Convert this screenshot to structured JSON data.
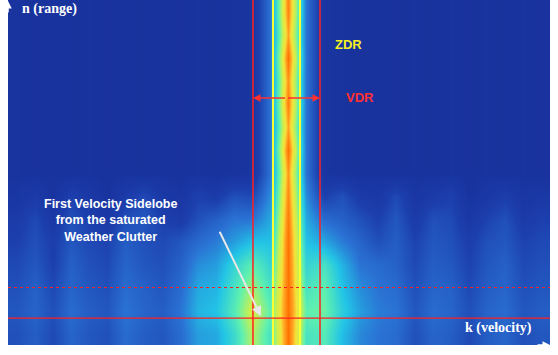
{
  "chart_data": {
    "type": "heatmap",
    "x_label": "k (velocity)",
    "y_label": "n (range)",
    "tick_labels": false,
    "xlim": [
      0,
      30
    ],
    "ylim": [
      0,
      15
    ],
    "xticks": [],
    "yticks": [],
    "zlim": [
      0,
      1
    ],
    "x": [
      0.5,
      1.5,
      2.5,
      3.5,
      4.5,
      5.5,
      6.5,
      7.5,
      8.5,
      9.5,
      10.5,
      11.5,
      12.5,
      13.5,
      14.5,
      15.5,
      16.5,
      17.5,
      18.5,
      19.5,
      20.5,
      21.5,
      22.5,
      23.5,
      24.5,
      25.5,
      26.5,
      27.5,
      28.5,
      29.5
    ],
    "y": [
      0.5,
      1.5,
      2.5,
      3.5,
      4.5,
      5.5,
      6.5,
      7.5,
      8.5,
      9.5,
      10.5,
      11.5,
      12.5,
      13.5,
      14.5
    ],
    "cells": [
      [
        0.2,
        0.24,
        0.18,
        0.26,
        0.22,
        0.2,
        0.28,
        0.24,
        0.22,
        0.28,
        0.38,
        0.4,
        0.52,
        0.7,
        0.55,
        1.0,
        0.55,
        0.58,
        0.44,
        0.34,
        0.3,
        0.28,
        0.2,
        0.26,
        0.24,
        0.18,
        0.24,
        0.26,
        0.2,
        0.22
      ],
      [
        0.22,
        0.26,
        0.2,
        0.28,
        0.24,
        0.22,
        0.3,
        0.26,
        0.24,
        0.3,
        0.42,
        0.45,
        0.58,
        0.75,
        0.6,
        1.0,
        0.6,
        0.62,
        0.48,
        0.38,
        0.32,
        0.3,
        0.22,
        0.28,
        0.26,
        0.2,
        0.26,
        0.28,
        0.22,
        0.24
      ],
      [
        0.2,
        0.25,
        0.18,
        0.26,
        0.22,
        0.2,
        0.28,
        0.25,
        0.22,
        0.28,
        0.4,
        0.42,
        0.55,
        0.68,
        0.55,
        1.0,
        0.55,
        0.6,
        0.45,
        0.35,
        0.3,
        0.28,
        0.2,
        0.26,
        0.25,
        0.18,
        0.24,
        0.26,
        0.2,
        0.22
      ],
      [
        0.18,
        0.22,
        0.15,
        0.25,
        0.2,
        0.18,
        0.26,
        0.22,
        0.2,
        0.25,
        0.35,
        0.38,
        0.5,
        0.6,
        0.5,
        1.0,
        0.5,
        0.55,
        0.42,
        0.3,
        0.28,
        0.25,
        0.18,
        0.24,
        0.22,
        0.16,
        0.22,
        0.25,
        0.18,
        0.2
      ],
      [
        0.15,
        0.2,
        0.14,
        0.22,
        0.18,
        0.16,
        0.24,
        0.2,
        0.18,
        0.22,
        0.28,
        0.32,
        0.38,
        0.45,
        0.45,
        1.0,
        0.45,
        0.4,
        0.32,
        0.26,
        0.2,
        0.24,
        0.16,
        0.22,
        0.2,
        0.14,
        0.2,
        0.22,
        0.16,
        0.18
      ],
      [
        0.12,
        0.18,
        0.1,
        0.2,
        0.15,
        0.1,
        0.2,
        0.22,
        0.15,
        0.12,
        0.2,
        0.25,
        0.3,
        0.3,
        0.4,
        0.98,
        0.4,
        0.28,
        0.25,
        0.2,
        0.15,
        0.22,
        0.12,
        0.2,
        0.18,
        0.1,
        0.16,
        0.2,
        0.12,
        0.15
      ],
      [
        0.08,
        0.12,
        0.06,
        0.15,
        0.1,
        0.06,
        0.12,
        0.18,
        0.1,
        0.08,
        0.15,
        0.12,
        0.2,
        0.18,
        0.35,
        0.95,
        0.35,
        0.15,
        0.2,
        0.12,
        0.1,
        0.18,
        0.08,
        0.12,
        0.15,
        0.06,
        0.1,
        0.14,
        0.08,
        0.1
      ],
      [
        0.06,
        0.05,
        0.06,
        0.05,
        0.06,
        0.05,
        0.06,
        0.05,
        0.06,
        0.05,
        0.06,
        0.05,
        0.06,
        0.07,
        0.3,
        0.92,
        0.3,
        0.07,
        0.06,
        0.05,
        0.06,
        0.05,
        0.06,
        0.05,
        0.06,
        0.05,
        0.06,
        0.05,
        0.06,
        0.05
      ],
      [
        0.06,
        0.05,
        0.06,
        0.05,
        0.06,
        0.05,
        0.06,
        0.05,
        0.06,
        0.05,
        0.06,
        0.05,
        0.06,
        0.07,
        0.3,
        1.0,
        0.3,
        0.07,
        0.06,
        0.05,
        0.06,
        0.05,
        0.06,
        0.05,
        0.06,
        0.05,
        0.06,
        0.05,
        0.06,
        0.05
      ],
      [
        0.06,
        0.05,
        0.06,
        0.05,
        0.06,
        0.05,
        0.06,
        0.05,
        0.06,
        0.05,
        0.06,
        0.05,
        0.06,
        0.07,
        0.3,
        0.9,
        0.3,
        0.07,
        0.06,
        0.05,
        0.06,
        0.05,
        0.06,
        0.05,
        0.06,
        0.05,
        0.06,
        0.05,
        0.06,
        0.05
      ],
      [
        0.06,
        0.05,
        0.06,
        0.05,
        0.06,
        0.05,
        0.06,
        0.05,
        0.06,
        0.05,
        0.06,
        0.05,
        0.06,
        0.07,
        0.3,
        0.97,
        0.3,
        0.07,
        0.06,
        0.05,
        0.06,
        0.05,
        0.06,
        0.05,
        0.06,
        0.05,
        0.06,
        0.05,
        0.06,
        0.05
      ],
      [
        0.06,
        0.05,
        0.06,
        0.05,
        0.06,
        0.05,
        0.06,
        0.05,
        0.06,
        0.05,
        0.06,
        0.05,
        0.06,
        0.07,
        0.3,
        0.93,
        0.3,
        0.07,
        0.06,
        0.05,
        0.06,
        0.05,
        0.06,
        0.05,
        0.06,
        0.05,
        0.06,
        0.05,
        0.06,
        0.05
      ],
      [
        0.06,
        0.05,
        0.06,
        0.05,
        0.06,
        0.05,
        0.06,
        0.05,
        0.06,
        0.05,
        0.06,
        0.05,
        0.06,
        0.07,
        0.3,
        1.0,
        0.3,
        0.07,
        0.06,
        0.05,
        0.06,
        0.05,
        0.06,
        0.05,
        0.06,
        0.05,
        0.06,
        0.05,
        0.06,
        0.05
      ],
      [
        0.06,
        0.05,
        0.06,
        0.05,
        0.06,
        0.05,
        0.06,
        0.05,
        0.06,
        0.05,
        0.06,
        0.05,
        0.06,
        0.07,
        0.3,
        0.9,
        0.3,
        0.07,
        0.06,
        0.05,
        0.06,
        0.05,
        0.06,
        0.05,
        0.06,
        0.05,
        0.06,
        0.05,
        0.06,
        0.05
      ],
      [
        0.06,
        0.05,
        0.06,
        0.05,
        0.06,
        0.05,
        0.06,
        0.05,
        0.06,
        0.05,
        0.06,
        0.05,
        0.06,
        0.07,
        0.3,
        0.96,
        0.3,
        0.07,
        0.06,
        0.05,
        0.06,
        0.05,
        0.06,
        0.05,
        0.06,
        0.05,
        0.06,
        0.05,
        0.06,
        0.05
      ]
    ],
    "zdr_bounds": [
      14.67,
      16.16
    ],
    "vdr_bounds": [
      13.56,
      17.27
    ],
    "range_lines": [
      {
        "value": 1.17,
        "line_style": "solid"
      },
      {
        "value": 2.5,
        "line_style": "dotted"
      }
    ],
    "annotations": {
      "zdr": "ZDR",
      "vdr": "VDR",
      "sidelobe": [
        "First Velocity Sidelobe",
        "from the saturated",
        "Weather Clutter"
      ]
    }
  }
}
